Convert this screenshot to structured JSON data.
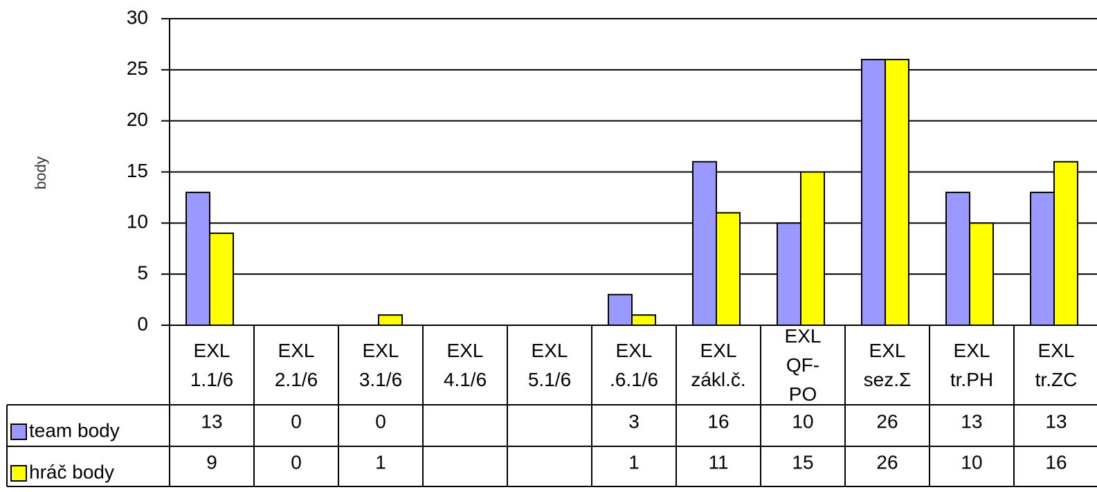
{
  "chart_data": {
    "type": "bar",
    "y_label": "body",
    "categories": [
      "EXL\n1.1/6",
      "EXL\n2.1/6",
      "EXL\n3.1/6",
      "EXL\n4.1/6",
      "EXL\n5.1/6",
      "EXL\n.6.1/6",
      "EXL\nzákl.č.",
      "EXL\nQF-\nPO",
      "EXL\nsez.Σ",
      "EXL\ntr.PH",
      "EXL\ntr.ZC"
    ],
    "series": [
      {
        "name": "team body",
        "color": "#9999ff",
        "values": [
          13,
          0,
          0,
          null,
          null,
          3,
          16,
          10,
          26,
          13,
          13
        ]
      },
      {
        "name": "hráč body",
        "color": "#ffff00",
        "values": [
          9,
          0,
          1,
          null,
          null,
          1,
          11,
          15,
          26,
          10,
          16
        ]
      }
    ],
    "ylim": [
      0,
      30
    ],
    "yticks": [
      0,
      5,
      10,
      15,
      20,
      25,
      30
    ],
    "grid": true,
    "data_table": true
  }
}
